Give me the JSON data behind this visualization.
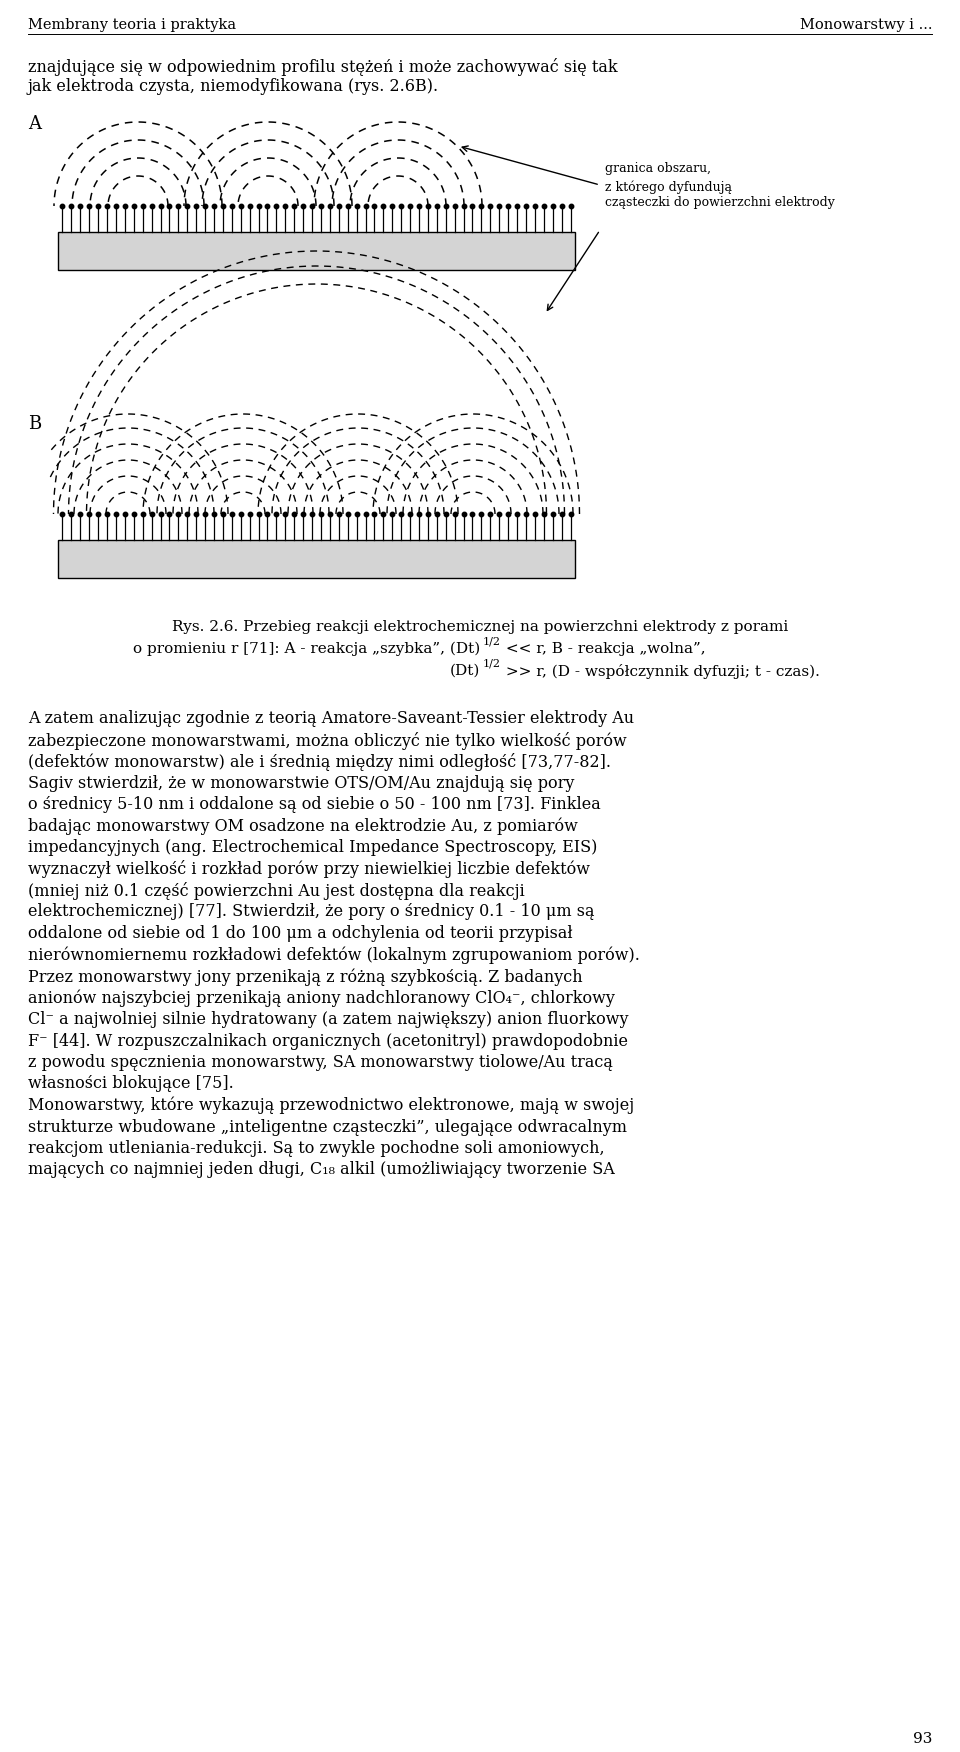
{
  "header_left": "Membrany teoria i praktyka",
  "header_right": "Monowarstwy i ...",
  "page_number": "93",
  "intro_line1": "znajdujące się w odpowiednim profilu stężeń i może zachowywać się tak",
  "intro_line2": "jak elektroda czysta, niemodyfikowana (rys. 2.6B).",
  "label_A": "A",
  "label_B": "B",
  "ann1": "granica obszaru,",
  "ann2": "z którego dyfundują",
  "ann3": "cząsteczki do powierzchni elektrody",
  "cap1": "Rys. 2.6. Przebieg reakcji elektrochemicznej na powierzchni elektrody z porami",
  "cap2a": "o promieniu r [71]: A - reakcja „szybka”, (Dt)",
  "cap2sup": "1/2",
  "cap2b": " << r, B - reakcja „wolna”,",
  "cap3a": "(Dt)",
  "cap3sup": "1/2",
  "cap3b": " >> r, (D - współczynnik dyfuzji; t - czas).",
  "body_lines": [
    "A zatem analizując zgodnie z teorią Amatore-Saveant-Tessier elektrody Au",
    "zabezpieczone monowarstwami, można obliczyć nie tylko wielkość porów",
    "(defektów monowarstw) ale i średnią między nimi odległość [73,77-82].",
    "Sagiv stwierdził, że w monowarstwie OTS/OM/Au znajdują się pory",
    "o średnicy 5-10 nm i oddalone są od siebie o 50 - 100 nm [73]. Finklea",
    "badając monowarstwy OM osadzone na elektrodzie Au, z pomiarów",
    "impedancyjnych (ang. Electrochemical Impedance Spectroscopy, EIS)",
    "wyznaczył wielkość i rozkład porów przy niewielkiej liczbie defektów",
    "(mniej niż 0.1 część powierzchni Au jest dostępna dla reakcji",
    "elektrochemicznej) [77]. Stwierdził, że pory o średnicy 0.1 - 10 μm są",
    "oddalone od siebie od 1 do 100 μm a odchylenia od teorii przypisał",
    "nierównomiernemu rozkładowi defektów (lokalnym zgrupowaniom porów).",
    "Przez monowarstwy jony przenikają z różną szybkością. Z badanych",
    "anionów najszybciej przenikają aniony nadchloranowy ClO₄⁻, chlorkowy",
    "Cl⁻ a najwolniej silnie hydratowany (a zatem największy) anion fluorkowy",
    "F⁻ [44]. W rozpuszczalnikach organicznych (acetonitryl) prawdopodobnie",
    "z powodu spęcznienia monowarstwy, SA monowarstwy tiolowe/Au tracą",
    "własności blokujące [75].",
    "Monowarstwy, które wykazują przewodnictwo elektronowe, mają w swojej",
    "strukturze wbudowane „inteligentne cząsteczki”, ulegające odwracalnym",
    "reakcjom utleniania-redukcji. Są to zwykle pochodne soli amoniowych,",
    "mających co najmniej jeden długi, C₁₈ alkil (umożliwiający tworzenie SA"
  ],
  "electrode_color": "#d4d4d4",
  "electrode_border": "#000000",
  "bg": "#ffffff"
}
